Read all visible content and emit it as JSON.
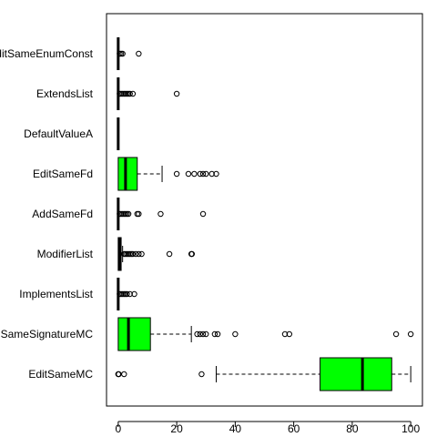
{
  "chart_data": {
    "type": "boxplot",
    "orientation": "horizontal",
    "title": "",
    "xlabel": "",
    "ylabel": "",
    "xlim": [
      -4,
      104
    ],
    "x_ticks": [
      0,
      20,
      40,
      60,
      80,
      100
    ],
    "grid": false,
    "box_color": "#00ff00",
    "categories": [
      {
        "label": "EditSameMC",
        "q1": 69,
        "median": 83.5,
        "q3": 93.5,
        "whisker_low": 33.5,
        "whisker_high": 100,
        "outliers": [
          0,
          0.2,
          2,
          28.5
        ]
      },
      {
        "label": "SameSignatureMC",
        "q1": 0,
        "median": 3.5,
        "q3": 11,
        "whisker_low": 0,
        "whisker_high": 25,
        "outliers": [
          27,
          28,
          29,
          30,
          33,
          34,
          40,
          57,
          58.5,
          95,
          100
        ]
      },
      {
        "label": "ImplementsList",
        "q1": 0,
        "median": 0,
        "q3": 0,
        "whisker_low": 0,
        "whisker_high": 0,
        "outliers": [
          0.5,
          1,
          1.5,
          2,
          2.5,
          3,
          4,
          5.5
        ]
      },
      {
        "label": "ModifierList",
        "q1": 0,
        "median": 0.5,
        "q3": 1,
        "whisker_low": 0,
        "whisker_high": 1.5,
        "outliers": [
          2,
          2.5,
          3,
          3.5,
          4,
          4.5,
          5,
          6,
          7,
          8,
          17.5,
          25,
          25.2
        ]
      },
      {
        "label": "AddSameFd",
        "q1": 0,
        "median": 0,
        "q3": 0,
        "whisker_low": 0,
        "whisker_high": 0,
        "outliers": [
          0.5,
          1,
          1.5,
          2,
          2.5,
          3,
          3.5,
          6.5,
          7,
          14.5,
          29
        ]
      },
      {
        "label": "EditSameFd",
        "q1": 0,
        "median": 2.5,
        "q3": 6.5,
        "whisker_low": 0,
        "whisker_high": 15,
        "outliers": [
          20,
          24,
          26,
          28,
          29,
          30,
          32,
          33.5
        ]
      },
      {
        "label": "DefaultValueA",
        "q1": 0,
        "median": 0,
        "q3": 0,
        "whisker_low": 0,
        "whisker_high": 0,
        "outliers": []
      },
      {
        "label": "ExtendsList",
        "q1": 0,
        "median": 0,
        "q3": 0,
        "whisker_low": 0,
        "whisker_high": 0,
        "outliers": [
          0.5,
          1,
          1.5,
          2,
          2.5,
          3,
          3.5,
          4,
          5,
          20
        ]
      },
      {
        "label": "EditSameEnumConst",
        "q1": 0,
        "median": 0,
        "q3": 0,
        "whisker_low": 0,
        "whisker_high": 0,
        "outliers": [
          0.5,
          1,
          1.5,
          7
        ]
      }
    ]
  }
}
